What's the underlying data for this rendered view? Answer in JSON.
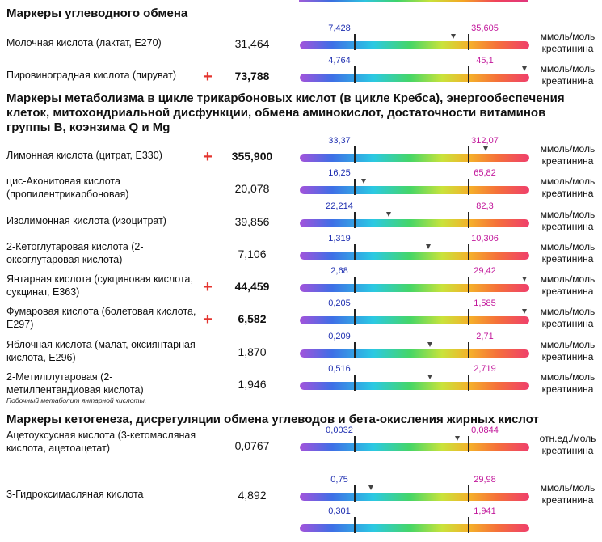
{
  "sections": [
    {
      "title": "Маркеры углеводного обмена"
    },
    {
      "title": "Маркеры метаболизма в цикле трикарбоновых кислот (в цикле Кребса), энергообеспечения клеток, митохондриальной дисфункции, обмена аминокислот, достаточности витаминов группы B, коэнзима Q и Mg"
    },
    {
      "title": "Маркеры кетогенеза, дисрегуляции обмена углеводов и бета-окисления жирных кислот"
    }
  ],
  "rows": [
    {
      "name": "Молочная кислота  (лактат, E270)",
      "value": "31,464",
      "flag": "",
      "bold": false,
      "low": "7,428",
      "high": "35,605",
      "unit": "ммоль/моль креатинина",
      "marker_pos": 0.67
    },
    {
      "name": "Пировиноградная кислота (пируват)",
      "value": "73,788",
      "flag": "+",
      "bold": true,
      "low": "4,764",
      "high": "45,1",
      "unit": "ммоль/моль креатинина",
      "marker_pos": 0.98
    },
    {
      "name": "Лимонная кислота (цитрат, E330)",
      "value": "355,900",
      "flag": "+",
      "bold": true,
      "low": "33,37",
      "high": "312,07",
      "unit": "ммоль/моль креатинина",
      "marker_pos": 0.81
    },
    {
      "name": "цис-Аконитовая кислота (пропилентрикарбоновая)",
      "value": "20,078",
      "flag": "",
      "bold": false,
      "low": "16,25",
      "high": "65,82",
      "unit": "ммоль/моль креатинина",
      "marker_pos": 0.28
    },
    {
      "name": "Изолимонная кислота (изоцитрат)",
      "value": "39,856",
      "flag": "",
      "bold": false,
      "low": "22,214",
      "high": "82,3",
      "unit": "ммоль/моль креатинина",
      "marker_pos": 0.39
    },
    {
      "name": "2-Кетоглутаровая кислота (2-оксоглутаровая кислота)",
      "value": "7,106",
      "flag": "",
      "bold": false,
      "low": "1,319",
      "high": "10,306",
      "unit": "ммоль/моль креатинина",
      "marker_pos": 0.56
    },
    {
      "name": "Янтарная кислота (сукциновая кислота, сукцинат, E363)",
      "value": "44,459",
      "flag": "+",
      "bold": true,
      "low": "2,68",
      "high": "29,42",
      "unit": "ммоль/моль креатинина",
      "marker_pos": 0.98
    },
    {
      "name": "Фумаровая кислота (болетовая кислота, E297)",
      "value": "6,582",
      "flag": "+",
      "bold": true,
      "low": "0,205",
      "high": "1,585",
      "unit": "ммоль/моль креатинина",
      "marker_pos": 0.98
    },
    {
      "name": "Яблочная кислота (малат, оксиянтарная кислота, E296)",
      "value": "1,870",
      "flag": "",
      "bold": false,
      "low": "0,209",
      "high": "2,71",
      "unit": "ммоль/моль креатинина",
      "marker_pos": 0.57
    },
    {
      "name": "2-Метилглутаровая (2-метилпентандиовая кислота)",
      "value": "1,946",
      "flag": "",
      "bold": false,
      "low": "0,516",
      "high": "2,719",
      "unit": "ммоль/моль креатинина",
      "marker_pos": 0.57
    },
    {
      "name": "Ацетоуксусная кислота (3-кетомасляная кислота, ацетоацетат)",
      "value": "0,0767",
      "flag": "",
      "bold": false,
      "low": "0,0032",
      "high": "0,0844",
      "unit": "отн.ед./моль креатинина",
      "marker_pos": 0.69
    },
    {
      "name": "3-Гидроксимасляная кислота",
      "value": "4,892",
      "flag": "",
      "bold": false,
      "low": "0,75",
      "high": "29,98",
      "unit": "ммоль/моль креатинина",
      "marker_pos": 0.31
    },
    {
      "name": "",
      "value": "",
      "flag": "",
      "bold": false,
      "low": "0,301",
      "high": "1,941",
      "unit": "",
      "marker_pos": null
    }
  ],
  "footnote": "Побочный метаболит янтарной кислоты."
}
